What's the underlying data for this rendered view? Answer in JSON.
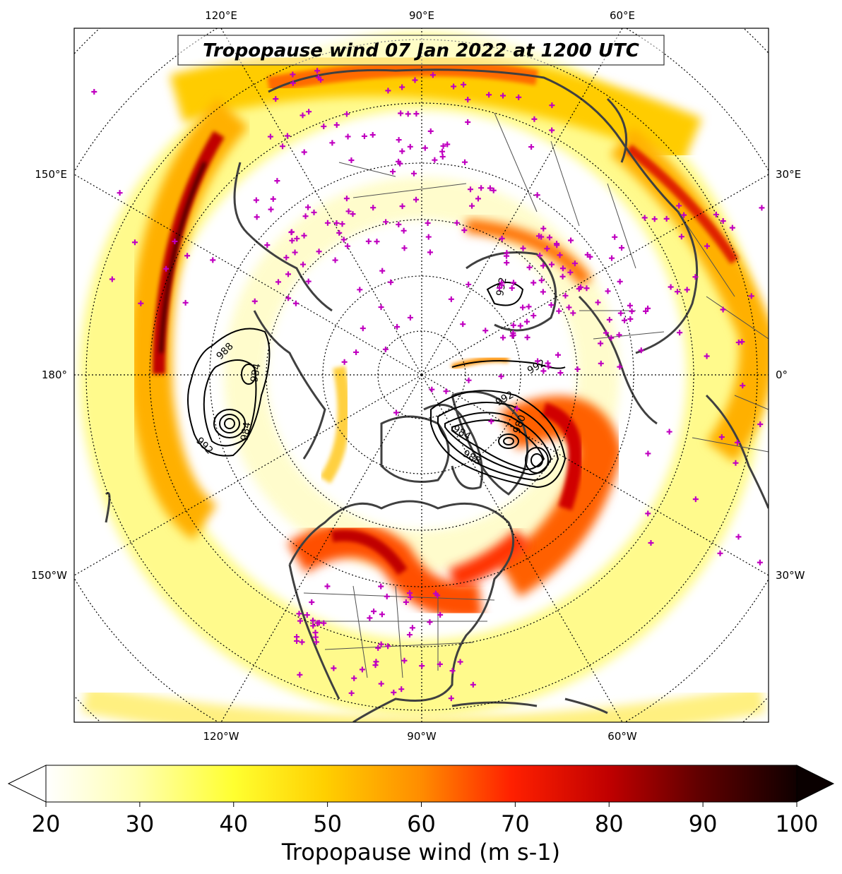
{
  "title": "Tropopause wind 07 Jan 2022 at 1200 UTC",
  "colorbar": {
    "label": "Tropopause wind (m s-1)",
    "ticks": [
      "20",
      "30",
      "40",
      "50",
      "60",
      "70",
      "80",
      "90",
      "100"
    ],
    "min": 20,
    "max": 100,
    "extend": "both",
    "colormap_stops": [
      "#ffffff",
      "#ffffb0",
      "#ffff40",
      "#ffd000",
      "#ff9000",
      "#ff3000",
      "#e00000",
      "#a00000",
      "#500000",
      "#100000"
    ]
  },
  "lon_labels": {
    "top": [
      "120°E",
      "90°E",
      "60°E"
    ],
    "bottom": [
      "120°W",
      "90°W",
      "60°W"
    ],
    "left": [
      "150°E",
      "180°",
      "150°W"
    ],
    "right": [
      "30°E",
      "0°",
      "30°W"
    ]
  },
  "contour_labels": [
    "988",
    "984",
    "984",
    "992",
    "992",
    "992",
    "984",
    "988",
    "980",
    "992"
  ],
  "projection": "north polar stereographic",
  "station_marker_color": "#c000c0",
  "coastline_color": "#404040"
}
